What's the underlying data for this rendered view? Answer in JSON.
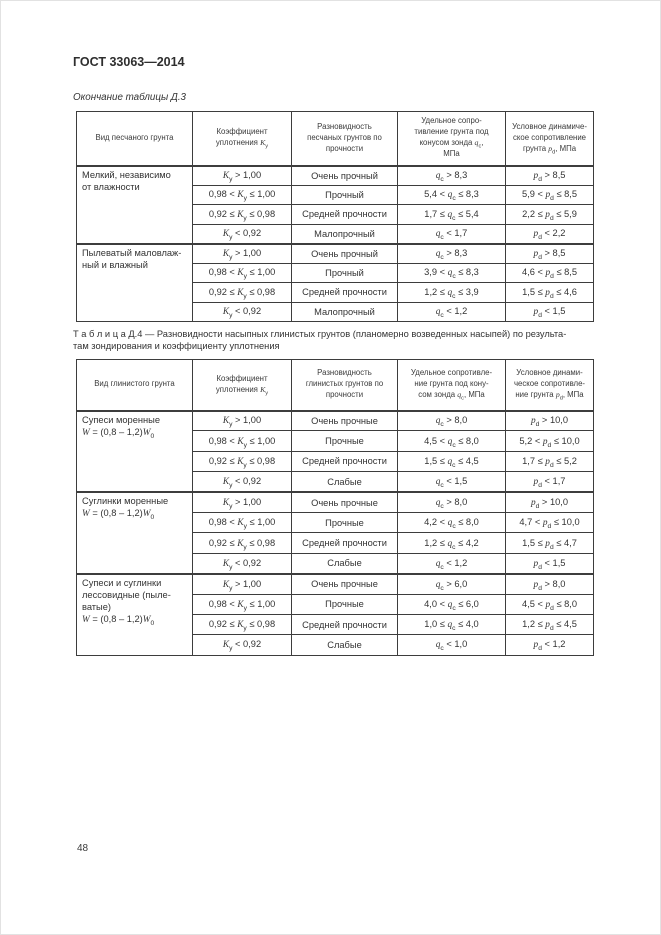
{
  "page": {
    "header": "ГОСТ 33063—2014",
    "continuation_label": "Окончание таблицы Д.3",
    "page_number": "48"
  },
  "table_d3": {
    "headers": [
      "Вид песчаного грунта",
      "Коэффициент\nуплотнения *K*~у~",
      "Разновидность\nпесчаных грунтов по\nпрочности",
      "Удельное сопро-\nтивление грунта под\nконусом зонда *q*~c~,\nМПа",
      "Условное динамиче-\nское сопротивление\nгрунта *p*~d~, МПа"
    ],
    "groups": [
      {
        "soil": "Мелкий, независимо\nот влажности",
        "rows": [
          [
            "*K*~у~ > 1,00",
            "Очень прочный",
            "*q*~c~ > 8,3",
            "*p*~d~ > 8,5"
          ],
          [
            "0,98 < *K*~у~ ≤ 1,00",
            "Прочный",
            "5,4 < *q*~c~ ≤ 8,3",
            "5,9 < *p*~d~ ≤ 8,5"
          ],
          [
            "0,92 ≤ *K*~у~ ≤ 0,98",
            "Средней прочности",
            "1,7 ≤ *q*~c~ ≤ 5,4",
            "2,2 ≤ *p*~d~ ≤ 5,9"
          ],
          [
            "*K*~у~ < 0,92",
            "Малопрочный",
            "*q*~c~ < 1,7",
            "*p*~d~ < 2,2"
          ]
        ]
      },
      {
        "soil": "Пылеватый маловлаж-\nный и влажный",
        "rows": [
          [
            "*K*~у~ > 1,00",
            "Очень прочный",
            "*q*~c~ > 8,3",
            "*p*~d~ > 8,5"
          ],
          [
            "0,98 < *K*~у~ ≤ 1,00",
            "Прочный",
            "3,9 < *q*~c~ ≤ 8,3",
            "4,6 < *p*~d~ ≤ 8,5"
          ],
          [
            "0,92 ≤ *K*~у~ ≤ 0,98",
            "Средней прочности",
            "1,2 ≤ *q*~c~ ≤ 3,9",
            "1,5 ≤ *p*~d~ ≤ 4,6"
          ],
          [
            "*K*~у~ < 0,92",
            "Малопрочный",
            "*q*~c~ < 1,2",
            "*p*~d~ < 1,5"
          ]
        ]
      }
    ]
  },
  "table_d4": {
    "caption_label": "Т а б л и ц а   Д.4",
    "caption_text": "— Разновидности насыпных глинистых грунтов (планомерно возведенных насыпей) по результа-\nтам зондирования и коэффициенту уплотнения",
    "headers": [
      "Вид глинистого грунта",
      "Коэффициент\nуплотнения *K*~у~",
      "Разновидность\nглинистых грунтов по\nпрочности",
      "Удельное сопротивле-\nние грунта под кону-\nсом зонда *q*~c~, МПа",
      "Условное динами-\nческое сопротивле-\nние грунта *p*~d~, МПа"
    ],
    "groups": [
      {
        "soil": "Супеси моренные\n*W* = (0,8 – 1,2)*W*~0~",
        "rows": [
          [
            "*K*~у~ > 1,00",
            "Очень прочные",
            "*q*~c~ > 8,0",
            "*p*~d~ > 10,0"
          ],
          [
            "0,98 < *K*~у~ ≤ 1,00",
            "Прочные",
            "4,5 < *q*~c~ ≤ 8,0",
            "5,2 < *p*~d~ ≤ 10,0"
          ],
          [
            "0,92 ≤ *K*~у~ ≤ 0,98",
            "Средней прочности",
            "1,5 ≤ *q*~c~ ≤ 4,5",
            "1,7 ≤ *p*~d~ ≤ 5,2"
          ],
          [
            "*K*~у~ < 0,92",
            "Слабые",
            "*q*~c~ < 1,5",
            "*p*~d~ < 1,7"
          ]
        ]
      },
      {
        "soil": "Суглинки моренные\n*W* = (0,8 – 1,2)*W*~0~",
        "rows": [
          [
            "*K*~у~ > 1,00",
            "Очень прочные",
            "*q*~c~ > 8,0",
            "*p*~d~ > 10,0"
          ],
          [
            "0,98 < *K*~у~ ≤ 1,00",
            "Прочные",
            "4,2 < *q*~c~ ≤ 8,0",
            "4,7 < *p*~d~ ≤ 10,0"
          ],
          [
            "0,92 ≤ *K*~у~ ≤ 0,98",
            "Средней прочности",
            "1,2 ≤ *q*~c~ ≤ 4,2",
            "1,5 ≤ *p*~d~ ≤ 4,7"
          ],
          [
            "*K*~у~ < 0,92",
            "Слабые",
            "*q*~c~ < 1,2",
            "*p*~d~ < 1,5"
          ]
        ]
      },
      {
        "soil": "Супеси и суглинки\nлессовидные (пыле-\nватые)\n*W* = (0,8 – 1,2)*W*~0~",
        "rows": [
          [
            "*K*~у~ > 1,00",
            "Очень прочные",
            "*q*~c~ > 6,0",
            "*p*~d~ > 8,0"
          ],
          [
            "0,98 < *K*~у~ ≤ 1,00",
            "Прочные",
            "4,0 < *q*~c~ ≤ 6,0",
            "4,5 < *p*~d~ ≤ 8,0"
          ],
          [
            "0,92 ≤ *K*~у~ ≤ 0,98",
            "Средней прочности",
            "1,0 ≤ *q*~c~ ≤ 4,0",
            "1,2 ≤ *p*~d~ ≤ 4,5"
          ],
          [
            "*K*~у~ < 0,92",
            "Слабые",
            "*q*~c~ < 1,0",
            "*p*~d~ < 1,2"
          ]
        ]
      }
    ]
  }
}
